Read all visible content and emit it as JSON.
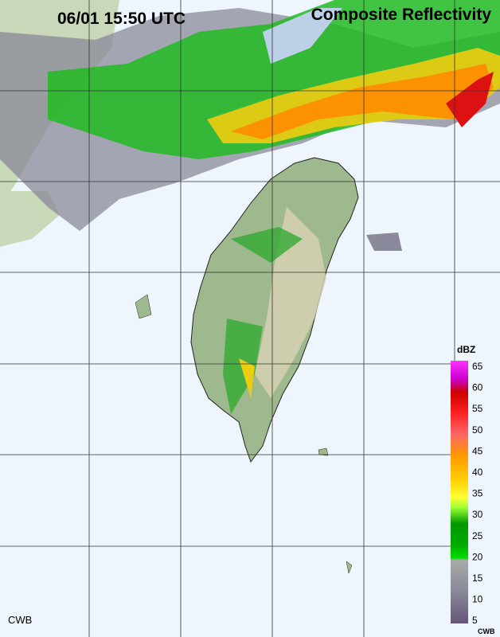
{
  "header": {
    "time": "06/01 15:50 UTC",
    "title": "Composite Reflectivity"
  },
  "legend": {
    "unit": "dBZ",
    "ticks": [
      "65",
      "60",
      "55",
      "50",
      "45",
      "40",
      "35",
      "30",
      "25",
      "20",
      "15",
      "10",
      "5"
    ],
    "source": "CWB"
  },
  "footer": {
    "source": "CWB"
  }
}
